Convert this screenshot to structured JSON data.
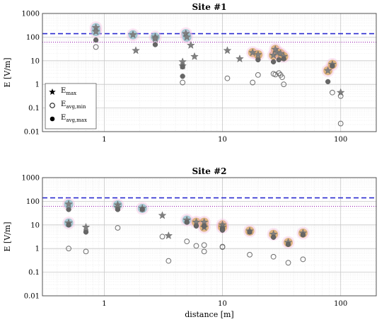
{
  "chart_data": [
    {
      "type": "scatter",
      "title": "Site #1",
      "xlabel": "",
      "ylabel": "E [V/m]",
      "xscale": "log",
      "yscale": "log",
      "xlim": [
        0.3,
        200
      ],
      "ylim": [
        0.01,
        1000
      ],
      "x_ticks": [
        "1",
        "10",
        "100"
      ],
      "y_ticks": [
        "1000",
        "100",
        "10",
        "1",
        "0.1",
        "0.01"
      ],
      "grid": true,
      "legend": {
        "position": "lower-left",
        "entries": [
          {
            "main": "E",
            "sub": "max",
            "marker": "star"
          },
          {
            "main": "E",
            "sub": "avg,min",
            "marker": "open-circle"
          },
          {
            "main": "E",
            "sub": "avg,max",
            "marker": "filled-circle"
          }
        ]
      },
      "reference_lines": [
        {
          "style": "dashed",
          "color": "#2b2bd0",
          "y": 140
        },
        {
          "style": "dotted",
          "color": "#a02ab8",
          "y": 61
        }
      ],
      "colors": {
        "star": "#7a7a7a",
        "filled": "#707070",
        "open": "#707070",
        "teal_halo": "#5fc9c2",
        "gold_halo": "#c9a227",
        "pink_halo": "#f4b5de"
      },
      "series": [
        {
          "name": "E max",
          "marker": "star",
          "points": [
            [
              0.85,
              250,
              "teal"
            ],
            [
              0.85,
              170,
              "teal"
            ],
            [
              1.75,
              125,
              "teal"
            ],
            [
              1.85,
              27,
              ""
            ],
            [
              2.7,
              100,
              "teal"
            ],
            [
              2.7,
              85,
              ""
            ],
            [
              4.6,
              9,
              ""
            ],
            [
              4.6,
              6,
              ""
            ],
            [
              4.9,
              140,
              "teal"
            ],
            [
              5.0,
              100,
              "teal"
            ],
            [
              5.4,
              45,
              ""
            ],
            [
              5.8,
              15,
              ""
            ],
            [
              11,
              27,
              ""
            ],
            [
              14,
              12,
              ""
            ],
            [
              18,
              22,
              "gold"
            ],
            [
              20,
              18,
              "gold"
            ],
            [
              27,
              17,
              "gold"
            ],
            [
              28,
              30,
              "gold"
            ],
            [
              29,
              22,
              "gold"
            ],
            [
              31,
              20,
              "gold"
            ],
            [
              33,
              15,
              "gold"
            ],
            [
              78,
              3.8,
              "gold"
            ],
            [
              85,
              7,
              "gold"
            ],
            [
              100,
              0.45,
              ""
            ]
          ]
        },
        {
          "name": "E avg,min",
          "marker": "open-circle",
          "points": [
            [
              0.85,
              38
            ],
            [
              4.6,
              1.2
            ],
            [
              11,
              1.8
            ],
            [
              18,
              1.2
            ],
            [
              20,
              2.5
            ],
            [
              27,
              2.8
            ],
            [
              28,
              2.6
            ],
            [
              30,
              3
            ],
            [
              31,
              2.5
            ],
            [
              32,
              2
            ],
            [
              33,
              1
            ],
            [
              85,
              0.45
            ],
            [
              100,
              0.32
            ],
            [
              100,
              0.022
            ]
          ]
        },
        {
          "name": "E avg,max",
          "marker": "filled-circle",
          "points": [
            [
              0.85,
              75
            ],
            [
              2.7,
              48
            ],
            [
              4.6,
              5.5
            ],
            [
              4.6,
              2.2
            ],
            [
              20,
              11
            ],
            [
              27,
              9
            ],
            [
              30,
              11
            ],
            [
              33,
              12
            ],
            [
              78,
              1.3
            ],
            [
              85,
              6
            ]
          ]
        }
      ]
    },
    {
      "type": "scatter",
      "title": "Site #2",
      "xlabel": "distance [m]",
      "ylabel": "E [V/m]",
      "xscale": "log",
      "yscale": "log",
      "xlim": [
        0.3,
        200
      ],
      "ylim": [
        0.01,
        1000
      ],
      "x_ticks": [
        "1",
        "10",
        "100"
      ],
      "y_ticks": [
        "1000",
        "100",
        "10",
        "1",
        "0.1",
        "0.01"
      ],
      "grid": true,
      "reference_lines": [
        {
          "style": "dashed",
          "color": "#2b2bd0",
          "y": 140
        },
        {
          "style": "dotted",
          "color": "#a02ab8",
          "y": 61
        }
      ],
      "series": [
        {
          "name": "E max",
          "marker": "star",
          "points": [
            [
              0.5,
              75,
              "teal"
            ],
            [
              0.5,
              12,
              "teal"
            ],
            [
              0.7,
              8,
              ""
            ],
            [
              1.3,
              70,
              "teal"
            ],
            [
              1.3,
              55,
              ""
            ],
            [
              2.1,
              50,
              "teal"
            ],
            [
              3.1,
              25,
              ""
            ],
            [
              3.5,
              3.5,
              ""
            ],
            [
              5.0,
              16,
              "teal"
            ],
            [
              6.0,
              13,
              "gold"
            ],
            [
              7.0,
              13,
              "gold"
            ],
            [
              7.0,
              8,
              "gold"
            ],
            [
              10,
              10,
              "gold"
            ],
            [
              10,
              8,
              "gold"
            ],
            [
              17,
              5.5,
              "gold"
            ],
            [
              27,
              4,
              "gold"
            ],
            [
              36,
              1.8,
              "gold"
            ],
            [
              48,
              4.5,
              "gold"
            ]
          ]
        },
        {
          "name": "E avg,min",
          "marker": "open-circle",
          "points": [
            [
              0.5,
              1.0
            ],
            [
              0.7,
              0.75
            ],
            [
              1.3,
              7.5
            ],
            [
              3.1,
              3.2
            ],
            [
              3.5,
              0.3
            ],
            [
              5.0,
              2
            ],
            [
              6.0,
              1.3
            ],
            [
              7.0,
              1.4
            ],
            [
              7.0,
              0.75
            ],
            [
              10,
              1.2
            ],
            [
              10,
              1.15
            ],
            [
              17,
              0.55
            ],
            [
              27,
              0.45
            ],
            [
              36,
              0.25
            ],
            [
              48,
              0.35
            ]
          ]
        },
        {
          "name": "E avg,max",
          "marker": "filled-circle",
          "points": [
            [
              0.5,
              45
            ],
            [
              0.5,
              10
            ],
            [
              0.7,
              5
            ],
            [
              1.3,
              45
            ],
            [
              2.1,
              45
            ],
            [
              5.0,
              13
            ],
            [
              6.0,
              9
            ],
            [
              7.0,
              9
            ],
            [
              10,
              7
            ],
            [
              10,
              6
            ],
            [
              17,
              5
            ],
            [
              27,
              3
            ],
            [
              36,
              1.5
            ],
            [
              48,
              3.8
            ]
          ]
        }
      ]
    }
  ]
}
